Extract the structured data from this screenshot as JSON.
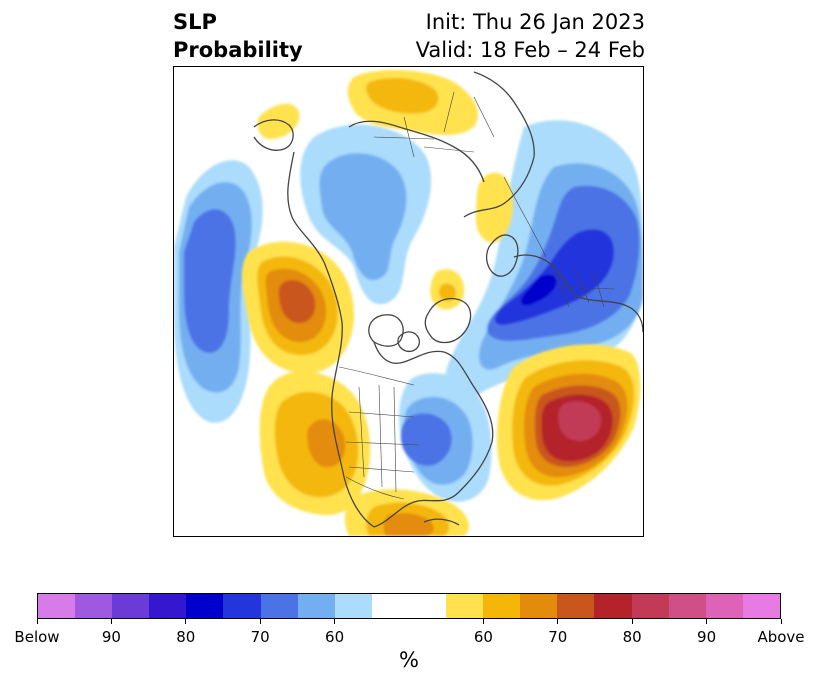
{
  "title": {
    "left_line1": "SLP",
    "left_line2": "Probability",
    "right_line1": "Init: Thu 26 Jan 2023",
    "right_line2": "Valid: 18 Feb – 24 Feb"
  },
  "colors": {
    "below": [
      "#d77be8",
      "#9f58e0",
      "#6b3bd8",
      "#3517d0",
      "#0000cc",
      "#2236dc",
      "#4b73e6",
      "#73aff0",
      "#abdcfc"
    ],
    "neutral": "#ffffff",
    "above": [
      "#ffe24e",
      "#f4b708",
      "#e38c0c",
      "#c9561c",
      "#b4232a",
      "#c23a56",
      "#cf4f86",
      "#dc63b8",
      "#e87be3"
    ],
    "coastline": "#444444"
  },
  "colorbar": {
    "tick_labels": [
      "Below",
      "90",
      "80",
      "70",
      "60",
      "60",
      "70",
      "80",
      "90",
      "Above"
    ],
    "unit": "%"
  }
}
